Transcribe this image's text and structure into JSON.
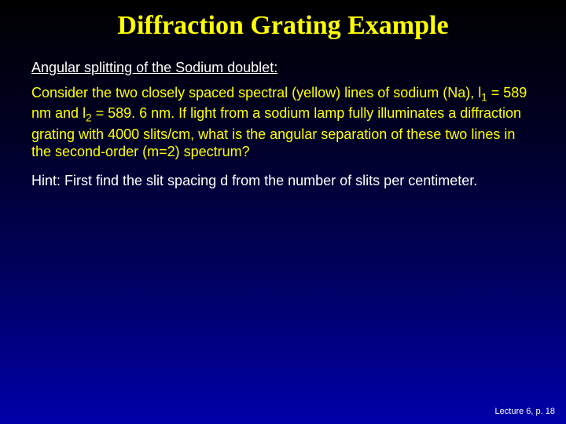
{
  "slide": {
    "title": "Diffraction Grating Example",
    "title_color": "#ffff00",
    "title_fontsize": 34,
    "title_fontfamily": "Comic Sans MS",
    "subtitle": "Angular splitting of the Sodium doublet:",
    "subtitle_color": "#ffffff",
    "subtitle_fontsize": 18,
    "body": {
      "color": "#ffff00",
      "fontsize": 18,
      "t1": "Consider the two closely spaced spectral (yellow) lines of sodium (Na), ",
      "lambda": "l",
      "sub1": "1",
      "eq1": " = 589 nm",
      "and": " and ",
      "sub2": "2",
      "eq2": " = 589. 6 nm",
      "t2": ".  If light from a sodium lamp fully illuminates a diffraction grating with ",
      "slits": "4000 slits/cm",
      "t3": ", what is the angular separation of these two lines in the second-order (m=2) spectrum?"
    },
    "hint": {
      "color": "#ffffff",
      "fontsize": 18,
      "label": "Hint:",
      "text": "  First find the slit spacing d from the number of slits per centimeter."
    },
    "footer": {
      "text": "Lecture 6, p. 18",
      "color": "#ffffff",
      "fontsize": 11
    },
    "background_top": "#000000",
    "background_bottom": "#0000aa"
  }
}
